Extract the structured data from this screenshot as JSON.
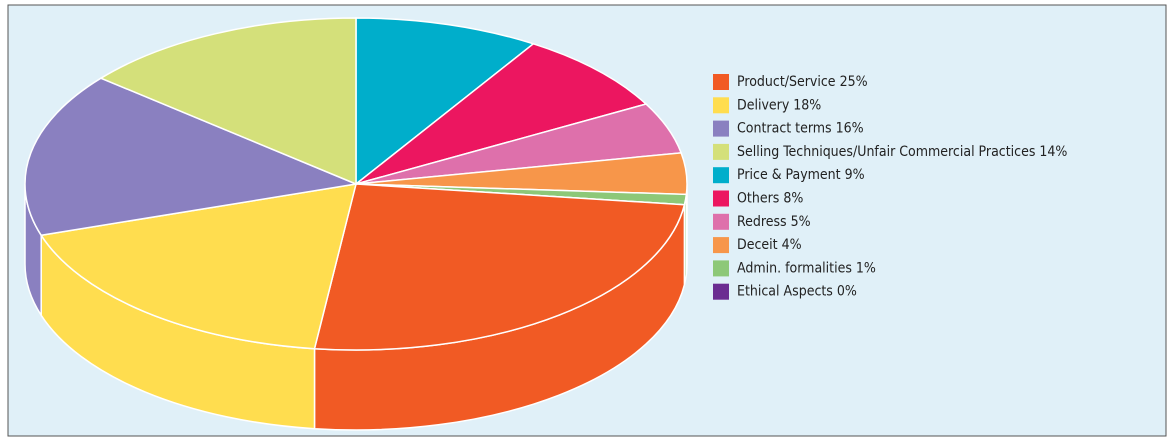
{
  "chart_data": {
    "type": "pie",
    "categories": [
      "Product/Service",
      "Delivery",
      "Contract terms",
      "Selling Techniques/Unfair Commercial Practices",
      "Price & Payment",
      "Others",
      "Redress",
      "Deceit",
      "Admin. formalities",
      "Ethical Aspects"
    ],
    "values": [
      25,
      18,
      16,
      14,
      9,
      8,
      5,
      4,
      1,
      0
    ],
    "value_labels": [
      "25%",
      "18%",
      "16%",
      "14%",
      "9%",
      "8%",
      "5%",
      "4%",
      "1%",
      "0%"
    ],
    "colors": [
      "#f15a24",
      "#ffdd4f",
      "#8a80c0",
      "#d4e07a",
      "#00aecb",
      "#ec1660",
      "#de70ab",
      "#f7964a",
      "#8dc878",
      "#6b2c91"
    ],
    "legend": "right"
  }
}
